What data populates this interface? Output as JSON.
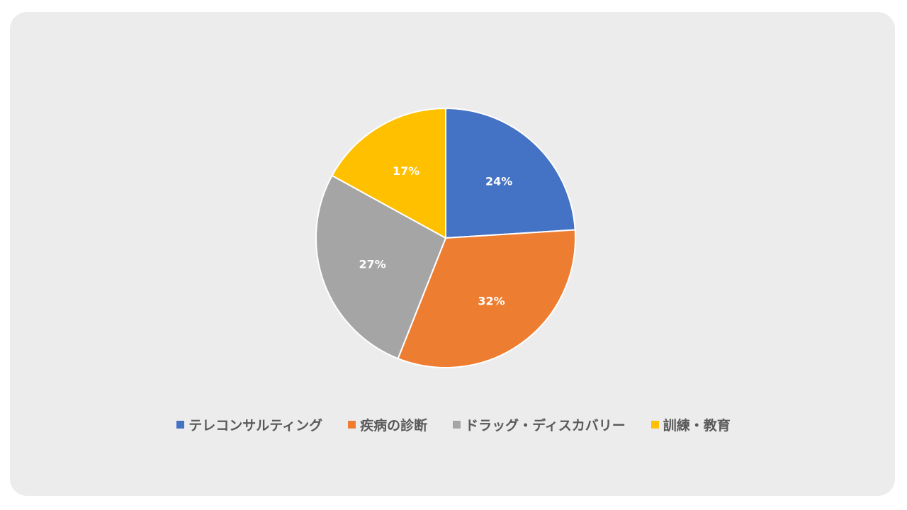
{
  "chart_data": {
    "type": "pie",
    "title": "",
    "categories": [
      "テレコンサルティング",
      "疾病の診断",
      "ドラッグ・ディスカバリー",
      "訓練・教育"
    ],
    "values": [
      24,
      32,
      27,
      17
    ],
    "labels": [
      "24%",
      "32%",
      "27%",
      "17%"
    ],
    "colors": [
      "#4472c4",
      "#ed7d31",
      "#a5a5a5",
      "#ffc000"
    ],
    "start_angle_deg": 0,
    "direction": "clockwise",
    "legend_position": "bottom"
  }
}
